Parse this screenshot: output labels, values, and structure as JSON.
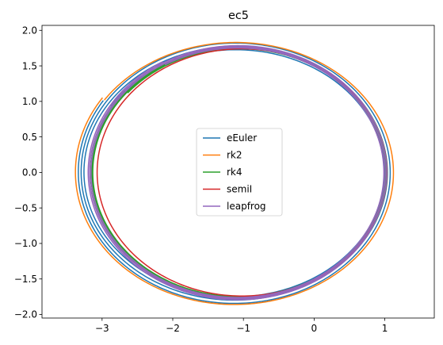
{
  "chart_data": {
    "type": "line",
    "title": "ec5",
    "xlabel": "",
    "ylabel": "",
    "xlim": [
      -3.85,
      1.7
    ],
    "ylim": [
      -2.05,
      2.07
    ],
    "xticks": [
      -3,
      -2,
      -1,
      0,
      1
    ],
    "xtick_labels": [
      "−3",
      "−2",
      "−1",
      "0",
      "1"
    ],
    "yticks": [
      -2.0,
      -1.5,
      -1.0,
      -0.5,
      0.0,
      0.5,
      1.0,
      1.5,
      2.0
    ],
    "ytick_labels": [
      "−2.0",
      "−1.5",
      "−1.0",
      "−0.5",
      "0.0",
      "0.5",
      "1.0",
      "1.5",
      "2.0"
    ],
    "grid": false,
    "legend_position": "center",
    "series": [
      {
        "name": "eEuler",
        "color": "#1f77b4",
        "kind": "spiral",
        "center": [
          -1.12,
          0.0
        ],
        "radius_start": [
          2.22,
          1.86
        ],
        "radius_end": [
          2.1,
          1.72
        ],
        "start_angle_deg": 147,
        "sweep_deg": 360,
        "windings": 3
      },
      {
        "name": "rk2",
        "color": "#ff7f0e",
        "kind": "spiral",
        "center": [
          -1.12,
          0.0
        ],
        "radius_start": [
          2.26,
          1.88
        ],
        "radius_end": [
          2.23,
          1.82
        ],
        "start_angle_deg": 146,
        "sweep_deg": 360,
        "windings": 1
      },
      {
        "name": "rk4",
        "color": "#2ca02c",
        "kind": "spiral",
        "center": [
          -1.06,
          0.0
        ],
        "radius_start": [
          2.1,
          1.78
        ],
        "radius_end": [
          2.06,
          1.74
        ],
        "start_angle_deg": 140,
        "sweep_deg": 360,
        "windings": 3
      },
      {
        "name": "semiI",
        "color": "#d62728",
        "kind": "ellipse",
        "center": [
          -1.02,
          0.0
        ],
        "radius_start": [
          2.05,
          1.74
        ],
        "radius_end": [
          2.05,
          1.74
        ],
        "start_angle_deg": 0,
        "sweep_deg": 360,
        "windings": 1
      },
      {
        "name": "leapfrog",
        "color": "#9467bd",
        "kind": "spiral",
        "center": [
          -1.08,
          0.0
        ],
        "radius_start": [
          2.12,
          1.8
        ],
        "radius_end": [
          2.06,
          1.75
        ],
        "start_angle_deg": 120,
        "sweep_deg": 360,
        "windings": 3
      }
    ]
  }
}
